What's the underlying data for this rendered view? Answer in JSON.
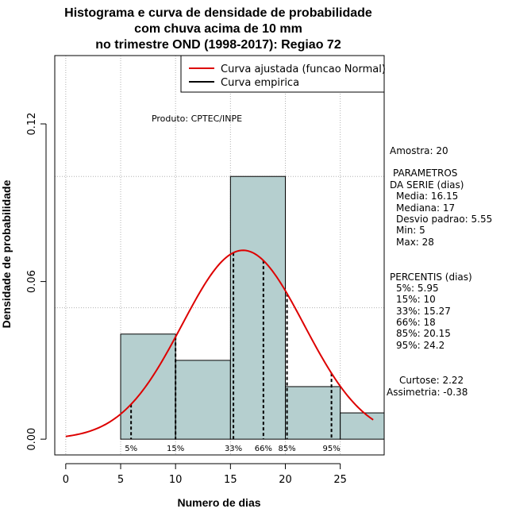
{
  "chart_data": {
    "type": "bar",
    "title_lines": [
      "Histograma e curva de densidade de probabilidade",
      "com chuva acima de 10 mm",
      "no trimestre OND (1998-2017): Regiao 72"
    ],
    "xlabel": "Numero de dias",
    "ylabel": "Densidade de probabilidade",
    "xlim": [
      -1,
      29
    ],
    "ylim": [
      -0.006,
      0.146
    ],
    "x_ticks": [
      0,
      5,
      10,
      15,
      20,
      25
    ],
    "y_ticks": [
      0.0,
      0.06,
      0.12
    ],
    "y_tick_labels": [
      "0.00",
      "0.06",
      "0.12"
    ],
    "x_gridlines": [
      0,
      5,
      10,
      15,
      20,
      25
    ],
    "y_gridlines": [
      0.05,
      0.1
    ],
    "bins": [
      {
        "from": 5,
        "to": 10,
        "density": 0.04
      },
      {
        "from": 10,
        "to": 15,
        "density": 0.03
      },
      {
        "from": 15,
        "to": 20,
        "density": 0.1
      },
      {
        "from": 20,
        "to": 25,
        "density": 0.02
      },
      {
        "from": 25,
        "to": 30,
        "density": 0.01
      }
    ],
    "normal_fit": {
      "mean": 16.15,
      "sd": 5.55,
      "x_from": 0,
      "x_to": 28
    },
    "percentile_markers": [
      {
        "label": "5%",
        "x": 5.95
      },
      {
        "label": "15%",
        "x": 10
      },
      {
        "label": "33%",
        "x": 15.27
      },
      {
        "label": "66%",
        "x": 18
      },
      {
        "label": "85%",
        "x": 20.15
      },
      {
        "label": "95%",
        "x": 24.2
      }
    ],
    "legend": {
      "placement": "top-right",
      "entries": [
        {
          "label": "Curva ajustada (funcao Normal)",
          "color": "#dd0000"
        },
        {
          "label": "Curva empirica",
          "color": "#000000"
        }
      ]
    },
    "annotation": "Produto: CPTEC/INPE"
  },
  "colors": {
    "bar_fill": "#b5cfcf",
    "curve": "#dd0000",
    "grid": "#b0b0b0"
  },
  "side_panel": {
    "sample": "Amostra: 20",
    "params_header_1": "PARAMETROS",
    "params_header_2": "DA SERIE (dias)",
    "params": [
      "Media: 16.15",
      "Mediana: 17",
      "Desvio padrao: 5.55",
      "Min: 5",
      "Max: 28"
    ],
    "percentis_header": "PERCENTIS (dias)",
    "percentis": [
      "5%: 5.95",
      "15%: 10",
      "33%: 15.27",
      "66%: 18",
      "85%: 20.15",
      "95%: 24.2"
    ],
    "kurtosis": "Curtose: 2.22",
    "skewness": "Assimetria: -0.38"
  }
}
